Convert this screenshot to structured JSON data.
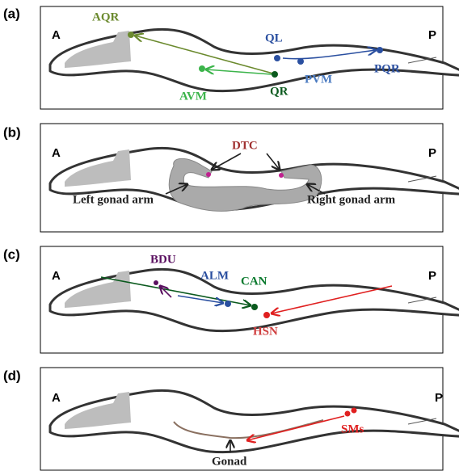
{
  "panels": [
    {
      "label": "(a)",
      "anterior": "A",
      "posterior": "P",
      "cells": [
        "AQR",
        "QL",
        "PVM",
        "PQR",
        "AVM",
        "QR"
      ]
    },
    {
      "label": "(b)",
      "anterior": "A",
      "posterior": "P",
      "cells": [
        "DTC",
        "Left gonad arm",
        "Right gonad arm"
      ]
    },
    {
      "label": "(c)",
      "anterior": "A",
      "posterior": "P",
      "cells": [
        "BDU",
        "ALM",
        "CAN",
        "HSN"
      ]
    },
    {
      "label": "(d)",
      "anterior": "A",
      "posterior": "P",
      "cells": [
        "SMs",
        "Gonad"
      ]
    }
  ]
}
